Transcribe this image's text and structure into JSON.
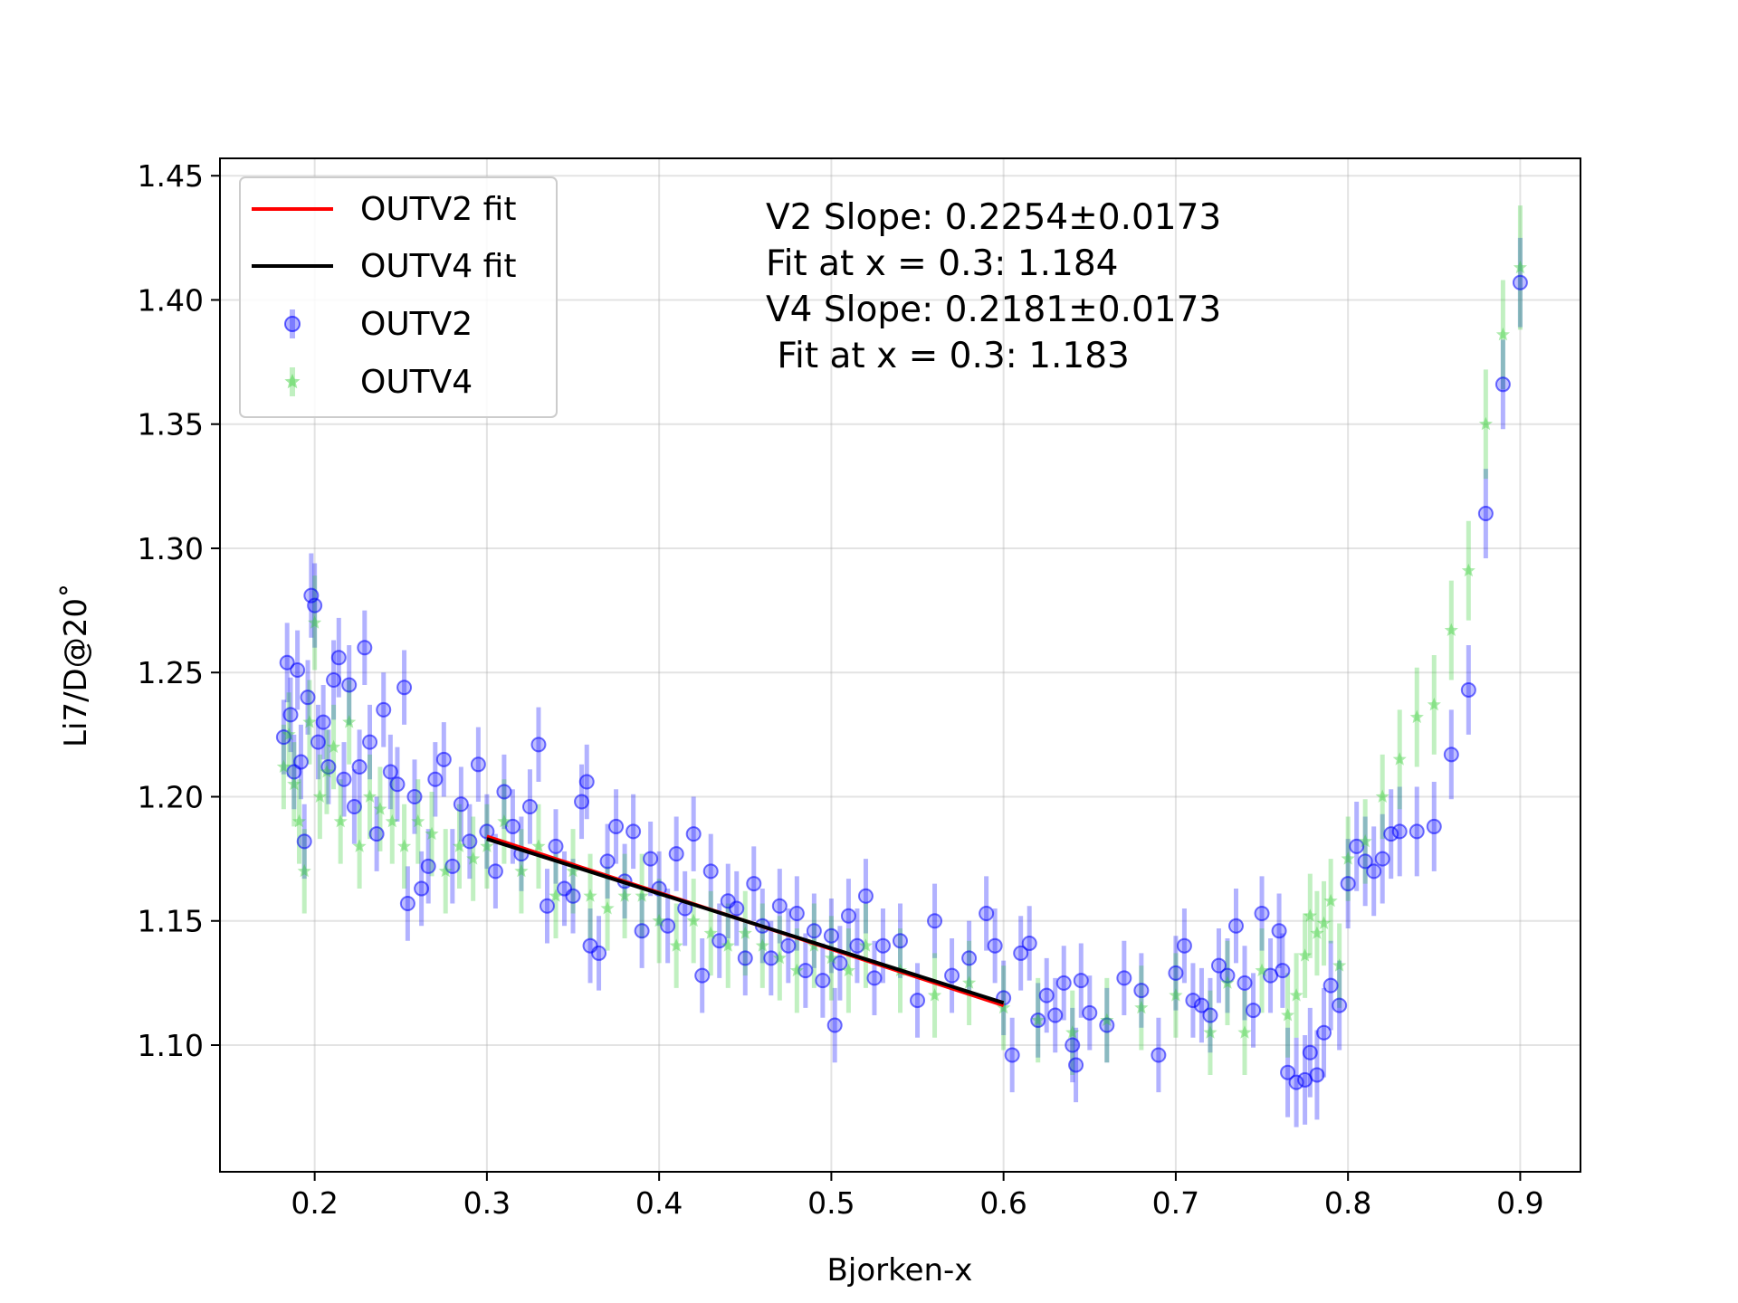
{
  "chart_data": {
    "type": "scatter",
    "xlabel": "Bjorken-x",
    "ylabel": "Li7/D@20˚",
    "xlim": [
      0.145,
      0.935
    ],
    "ylim": [
      1.049,
      1.457
    ],
    "grid": true,
    "xticks": [
      0.2,
      0.3,
      0.4,
      0.5,
      0.6,
      0.7,
      0.8,
      0.9
    ],
    "xtick_labels": [
      "0.2",
      "0.3",
      "0.4",
      "0.5",
      "0.6",
      "0.7",
      "0.8",
      "0.9"
    ],
    "yticks": [
      1.1,
      1.15,
      1.2,
      1.25,
      1.3,
      1.35,
      1.4,
      1.45
    ],
    "ytick_labels": [
      "1.10",
      "1.15",
      "1.20",
      "1.25",
      "1.30",
      "1.35",
      "1.40",
      "1.45"
    ],
    "legend": {
      "position": "top-left",
      "entries": [
        "OUTV2 fit",
        "OUTV4 fit",
        "OUTV2",
        "OUTV4"
      ]
    },
    "annotations": [
      "V2 Slope: 0.2254±0.0173",
      "Fit at x = 0.3: 1.184",
      "V4 Slope: 0.2181±0.0173",
      " Fit at x = 0.3: 1.183"
    ],
    "fits": [
      {
        "name": "OUTV2 fit",
        "color": "#ff0000",
        "x": [
          0.3,
          0.6
        ],
        "y": [
          1.184,
          1.116
        ]
      },
      {
        "name": "OUTV4 fit",
        "color": "#000000",
        "x": [
          0.3,
          0.6
        ],
        "y": [
          1.183,
          1.117
        ]
      }
    ],
    "series": [
      {
        "name": "OUTV2",
        "marker": "circle",
        "color": "#0000ff",
        "points": [
          [
            0.182,
            1.224,
            0.015
          ],
          [
            0.184,
            1.254,
            0.016
          ],
          [
            0.186,
            1.233,
            0.015
          ],
          [
            0.188,
            1.21,
            0.015
          ],
          [
            0.19,
            1.251,
            0.016
          ],
          [
            0.192,
            1.214,
            0.015
          ],
          [
            0.194,
            1.182,
            0.015
          ],
          [
            0.196,
            1.24,
            0.015
          ],
          [
            0.198,
            1.281,
            0.017
          ],
          [
            0.2,
            1.277,
            0.017
          ],
          [
            0.202,
            1.222,
            0.015
          ],
          [
            0.205,
            1.23,
            0.015
          ],
          [
            0.208,
            1.212,
            0.015
          ],
          [
            0.211,
            1.247,
            0.016
          ],
          [
            0.214,
            1.256,
            0.016
          ],
          [
            0.217,
            1.207,
            0.015
          ],
          [
            0.22,
            1.245,
            0.016
          ],
          [
            0.223,
            1.196,
            0.015
          ],
          [
            0.226,
            1.212,
            0.015
          ],
          [
            0.229,
            1.26,
            0.015
          ],
          [
            0.232,
            1.222,
            0.015
          ],
          [
            0.236,
            1.185,
            0.015
          ],
          [
            0.24,
            1.235,
            0.015
          ],
          [
            0.244,
            1.21,
            0.015
          ],
          [
            0.248,
            1.205,
            0.015
          ],
          [
            0.252,
            1.244,
            0.015
          ],
          [
            0.254,
            1.157,
            0.015
          ],
          [
            0.258,
            1.2,
            0.015
          ],
          [
            0.262,
            1.163,
            0.015
          ],
          [
            0.266,
            1.172,
            0.015
          ],
          [
            0.27,
            1.207,
            0.015
          ],
          [
            0.275,
            1.215,
            0.015
          ],
          [
            0.28,
            1.172,
            0.015
          ],
          [
            0.285,
            1.197,
            0.015
          ],
          [
            0.29,
            1.182,
            0.015
          ],
          [
            0.295,
            1.213,
            0.015
          ],
          [
            0.3,
            1.186,
            0.015
          ],
          [
            0.305,
            1.17,
            0.015
          ],
          [
            0.31,
            1.202,
            0.015
          ],
          [
            0.315,
            1.188,
            0.015
          ],
          [
            0.32,
            1.177,
            0.015
          ],
          [
            0.325,
            1.196,
            0.015
          ],
          [
            0.33,
            1.221,
            0.015
          ],
          [
            0.335,
            1.156,
            0.015
          ],
          [
            0.34,
            1.18,
            0.015
          ],
          [
            0.345,
            1.163,
            0.015
          ],
          [
            0.35,
            1.16,
            0.015
          ],
          [
            0.355,
            1.198,
            0.015
          ],
          [
            0.358,
            1.206,
            0.015
          ],
          [
            0.36,
            1.14,
            0.015
          ],
          [
            0.365,
            1.137,
            0.015
          ],
          [
            0.37,
            1.174,
            0.015
          ],
          [
            0.375,
            1.188,
            0.015
          ],
          [
            0.38,
            1.166,
            0.015
          ],
          [
            0.385,
            1.186,
            0.015
          ],
          [
            0.39,
            1.146,
            0.015
          ],
          [
            0.395,
            1.175,
            0.015
          ],
          [
            0.4,
            1.163,
            0.015
          ],
          [
            0.405,
            1.148,
            0.015
          ],
          [
            0.41,
            1.177,
            0.015
          ],
          [
            0.415,
            1.155,
            0.015
          ],
          [
            0.42,
            1.185,
            0.015
          ],
          [
            0.425,
            1.128,
            0.015
          ],
          [
            0.43,
            1.17,
            0.015
          ],
          [
            0.435,
            1.142,
            0.015
          ],
          [
            0.44,
            1.158,
            0.015
          ],
          [
            0.445,
            1.155,
            0.015
          ],
          [
            0.45,
            1.135,
            0.015
          ],
          [
            0.455,
            1.165,
            0.015
          ],
          [
            0.46,
            1.148,
            0.015
          ],
          [
            0.465,
            1.135,
            0.015
          ],
          [
            0.47,
            1.156,
            0.015
          ],
          [
            0.475,
            1.14,
            0.015
          ],
          [
            0.48,
            1.153,
            0.015
          ],
          [
            0.485,
            1.13,
            0.015
          ],
          [
            0.49,
            1.146,
            0.015
          ],
          [
            0.495,
            1.126,
            0.015
          ],
          [
            0.5,
            1.144,
            0.015
          ],
          [
            0.502,
            1.108,
            0.015
          ],
          [
            0.505,
            1.133,
            0.015
          ],
          [
            0.51,
            1.152,
            0.015
          ],
          [
            0.515,
            1.14,
            0.015
          ],
          [
            0.52,
            1.16,
            0.015
          ],
          [
            0.525,
            1.127,
            0.015
          ],
          [
            0.53,
            1.14,
            0.015
          ],
          [
            0.54,
            1.142,
            0.015
          ],
          [
            0.55,
            1.118,
            0.015
          ],
          [
            0.56,
            1.15,
            0.015
          ],
          [
            0.57,
            1.128,
            0.015
          ],
          [
            0.58,
            1.135,
            0.015
          ],
          [
            0.59,
            1.153,
            0.015
          ],
          [
            0.595,
            1.14,
            0.015
          ],
          [
            0.6,
            1.119,
            0.015
          ],
          [
            0.605,
            1.096,
            0.015
          ],
          [
            0.61,
            1.137,
            0.015
          ],
          [
            0.615,
            1.141,
            0.015
          ],
          [
            0.62,
            1.11,
            0.015
          ],
          [
            0.625,
            1.12,
            0.015
          ],
          [
            0.63,
            1.112,
            0.015
          ],
          [
            0.635,
            1.125,
            0.015
          ],
          [
            0.64,
            1.1,
            0.015
          ],
          [
            0.642,
            1.092,
            0.015
          ],
          [
            0.645,
            1.126,
            0.015
          ],
          [
            0.65,
            1.113,
            0.015
          ],
          [
            0.66,
            1.108,
            0.015
          ],
          [
            0.67,
            1.127,
            0.015
          ],
          [
            0.68,
            1.122,
            0.015
          ],
          [
            0.69,
            1.096,
            0.015
          ],
          [
            0.7,
            1.129,
            0.015
          ],
          [
            0.705,
            1.14,
            0.015
          ],
          [
            0.71,
            1.118,
            0.015
          ],
          [
            0.715,
            1.116,
            0.015
          ],
          [
            0.72,
            1.112,
            0.015
          ],
          [
            0.725,
            1.132,
            0.015
          ],
          [
            0.73,
            1.128,
            0.015
          ],
          [
            0.735,
            1.148,
            0.015
          ],
          [
            0.74,
            1.125,
            0.015
          ],
          [
            0.745,
            1.114,
            0.015
          ],
          [
            0.75,
            1.153,
            0.015
          ],
          [
            0.755,
            1.128,
            0.015
          ],
          [
            0.76,
            1.146,
            0.015
          ],
          [
            0.762,
            1.13,
            0.015
          ],
          [
            0.765,
            1.089,
            0.018
          ],
          [
            0.77,
            1.085,
            0.018
          ],
          [
            0.775,
            1.086,
            0.018
          ],
          [
            0.778,
            1.097,
            0.018
          ],
          [
            0.782,
            1.088,
            0.018
          ],
          [
            0.786,
            1.105,
            0.018
          ],
          [
            0.79,
            1.124,
            0.018
          ],
          [
            0.795,
            1.116,
            0.018
          ],
          [
            0.8,
            1.165,
            0.018
          ],
          [
            0.805,
            1.18,
            0.018
          ],
          [
            0.81,
            1.174,
            0.018
          ],
          [
            0.815,
            1.17,
            0.018
          ],
          [
            0.82,
            1.175,
            0.018
          ],
          [
            0.825,
            1.185,
            0.018
          ],
          [
            0.83,
            1.186,
            0.018
          ],
          [
            0.84,
            1.186,
            0.018
          ],
          [
            0.85,
            1.188,
            0.018
          ],
          [
            0.86,
            1.217,
            0.018
          ],
          [
            0.87,
            1.243,
            0.018
          ],
          [
            0.88,
            1.314,
            0.018
          ],
          [
            0.89,
            1.366,
            0.018
          ],
          [
            0.9,
            1.407,
            0.018
          ]
        ]
      },
      {
        "name": "OUTV4",
        "marker": "star",
        "color": "#32cd32",
        "points": [
          [
            0.182,
            1.212,
            0.017
          ],
          [
            0.185,
            1.225,
            0.017
          ],
          [
            0.188,
            1.205,
            0.017
          ],
          [
            0.191,
            1.19,
            0.017
          ],
          [
            0.194,
            1.17,
            0.017
          ],
          [
            0.197,
            1.23,
            0.017
          ],
          [
            0.2,
            1.27,
            0.019
          ],
          [
            0.203,
            1.2,
            0.017
          ],
          [
            0.207,
            1.21,
            0.017
          ],
          [
            0.211,
            1.22,
            0.017
          ],
          [
            0.215,
            1.19,
            0.017
          ],
          [
            0.22,
            1.23,
            0.017
          ],
          [
            0.226,
            1.18,
            0.017
          ],
          [
            0.232,
            1.2,
            0.017
          ],
          [
            0.238,
            1.195,
            0.017
          ],
          [
            0.245,
            1.19,
            0.017
          ],
          [
            0.252,
            1.18,
            0.017
          ],
          [
            0.26,
            1.19,
            0.017
          ],
          [
            0.268,
            1.185,
            0.017
          ],
          [
            0.276,
            1.17,
            0.017
          ],
          [
            0.284,
            1.18,
            0.017
          ],
          [
            0.292,
            1.175,
            0.017
          ],
          [
            0.3,
            1.18,
            0.017
          ],
          [
            0.31,
            1.19,
            0.017
          ],
          [
            0.32,
            1.17,
            0.017
          ],
          [
            0.33,
            1.18,
            0.017
          ],
          [
            0.34,
            1.16,
            0.017
          ],
          [
            0.35,
            1.17,
            0.017
          ],
          [
            0.36,
            1.16,
            0.017
          ],
          [
            0.37,
            1.155,
            0.017
          ],
          [
            0.38,
            1.16,
            0.017
          ],
          [
            0.39,
            1.16,
            0.017
          ],
          [
            0.4,
            1.15,
            0.017
          ],
          [
            0.41,
            1.14,
            0.017
          ],
          [
            0.42,
            1.15,
            0.017
          ],
          [
            0.43,
            1.145,
            0.017
          ],
          [
            0.44,
            1.14,
            0.017
          ],
          [
            0.45,
            1.145,
            0.017
          ],
          [
            0.46,
            1.14,
            0.017
          ],
          [
            0.47,
            1.135,
            0.017
          ],
          [
            0.48,
            1.13,
            0.017
          ],
          [
            0.49,
            1.14,
            0.017
          ],
          [
            0.5,
            1.135,
            0.017
          ],
          [
            0.51,
            1.13,
            0.017
          ],
          [
            0.52,
            1.14,
            0.017
          ],
          [
            0.54,
            1.13,
            0.017
          ],
          [
            0.56,
            1.12,
            0.017
          ],
          [
            0.58,
            1.125,
            0.017
          ],
          [
            0.6,
            1.115,
            0.017
          ],
          [
            0.62,
            1.11,
            0.017
          ],
          [
            0.64,
            1.105,
            0.017
          ],
          [
            0.66,
            1.11,
            0.017
          ],
          [
            0.68,
            1.115,
            0.017
          ],
          [
            0.7,
            1.12,
            0.017
          ],
          [
            0.72,
            1.105,
            0.017
          ],
          [
            0.73,
            1.125,
            0.017
          ],
          [
            0.74,
            1.105,
            0.017
          ],
          [
            0.75,
            1.13,
            0.017
          ],
          [
            0.765,
            1.112,
            0.017
          ],
          [
            0.77,
            1.12,
            0.017
          ],
          [
            0.775,
            1.136,
            0.017
          ],
          [
            0.778,
            1.152,
            0.017
          ],
          [
            0.782,
            1.145,
            0.017
          ],
          [
            0.786,
            1.149,
            0.017
          ],
          [
            0.79,
            1.158,
            0.017
          ],
          [
            0.795,
            1.132,
            0.017
          ],
          [
            0.8,
            1.175,
            0.017
          ],
          [
            0.81,
            1.182,
            0.017
          ],
          [
            0.82,
            1.2,
            0.017
          ],
          [
            0.83,
            1.215,
            0.02
          ],
          [
            0.84,
            1.232,
            0.02
          ],
          [
            0.85,
            1.237,
            0.02
          ],
          [
            0.86,
            1.267,
            0.02
          ],
          [
            0.87,
            1.291,
            0.02
          ],
          [
            0.88,
            1.35,
            0.022
          ],
          [
            0.89,
            1.386,
            0.022
          ],
          [
            0.9,
            1.413,
            0.025
          ]
        ]
      }
    ]
  }
}
